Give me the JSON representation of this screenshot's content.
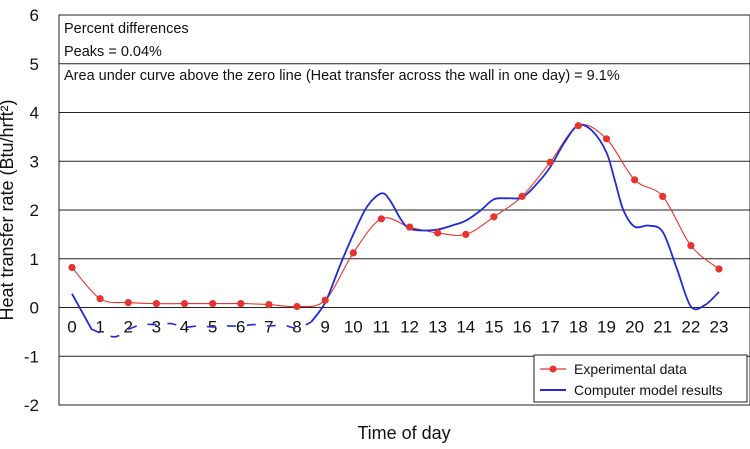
{
  "chart_data": {
    "type": "line",
    "ylabel": "Heat transfer rate (Btu/hrft²)",
    "xlabel": "Time of day",
    "ylim": [
      -2,
      6
    ],
    "yticks": [
      -2,
      -1,
      0,
      1,
      2,
      3,
      4,
      5,
      6
    ],
    "x_ticks": [
      "0",
      "1",
      "2",
      "3",
      "4",
      "5",
      "6",
      "7",
      "8",
      "9",
      "10",
      "11",
      "12",
      "13",
      "14",
      "15",
      "16",
      "17",
      "18",
      "19",
      "20",
      "21",
      "22",
      "23"
    ],
    "grid": "horizontal",
    "annotations": [
      "Percent differences",
      "Peaks = 0.04%",
      "Area under curve above the zero line (Heat transfer across the wall in one day) = 9.1%"
    ],
    "legend_position": "bottom-right",
    "series": [
      {
        "name": "Experimental data",
        "color": "#e8342e",
        "marker": "circle",
        "x": [
          0,
          1,
          2,
          3,
          4,
          5,
          6,
          7,
          8,
          9,
          10,
          11,
          12,
          13,
          14,
          15,
          16,
          17,
          18,
          19,
          20,
          21,
          22,
          23
        ],
        "values": [
          0.82,
          0.18,
          0.1,
          0.08,
          0.08,
          0.08,
          0.08,
          0.06,
          0.02,
          0.15,
          1.12,
          1.82,
          1.65,
          1.53,
          1.5,
          1.86,
          2.28,
          2.98,
          3.73,
          3.46,
          2.62,
          2.28,
          1.27,
          0.79
        ]
      },
      {
        "name": "Computer model results",
        "color": "#1f2bd6",
        "x": [
          0,
          0.7,
          1.5,
          2,
          2.5,
          3,
          3.5,
          4,
          4.5,
          5,
          5.5,
          6,
          6.5,
          7,
          7.5,
          8,
          8.5,
          9,
          9.5,
          10,
          10.5,
          11,
          11.3,
          11.7,
          12,
          12.5,
          13,
          13.5,
          14,
          14.5,
          15,
          15.5,
          16,
          16.5,
          17,
          17.5,
          18,
          18.5,
          19,
          19.3,
          19.6,
          20,
          20.5,
          21,
          21.5,
          22,
          22.5,
          23
        ],
        "values": [
          0.28,
          -0.45,
          -0.6,
          -0.45,
          -0.35,
          -0.35,
          -0.33,
          -0.4,
          -0.38,
          -0.4,
          -0.38,
          -0.38,
          -0.35,
          -0.38,
          -0.36,
          -0.42,
          -0.3,
          0.1,
          0.82,
          1.5,
          2.08,
          2.34,
          2.2,
          1.8,
          1.62,
          1.58,
          1.6,
          1.68,
          1.78,
          1.98,
          2.22,
          2.24,
          2.26,
          2.52,
          2.88,
          3.38,
          3.74,
          3.62,
          3.18,
          2.6,
          2.0,
          1.66,
          1.68,
          1.55,
          0.8,
          0.02,
          0.05,
          0.32
        ]
      }
    ]
  }
}
